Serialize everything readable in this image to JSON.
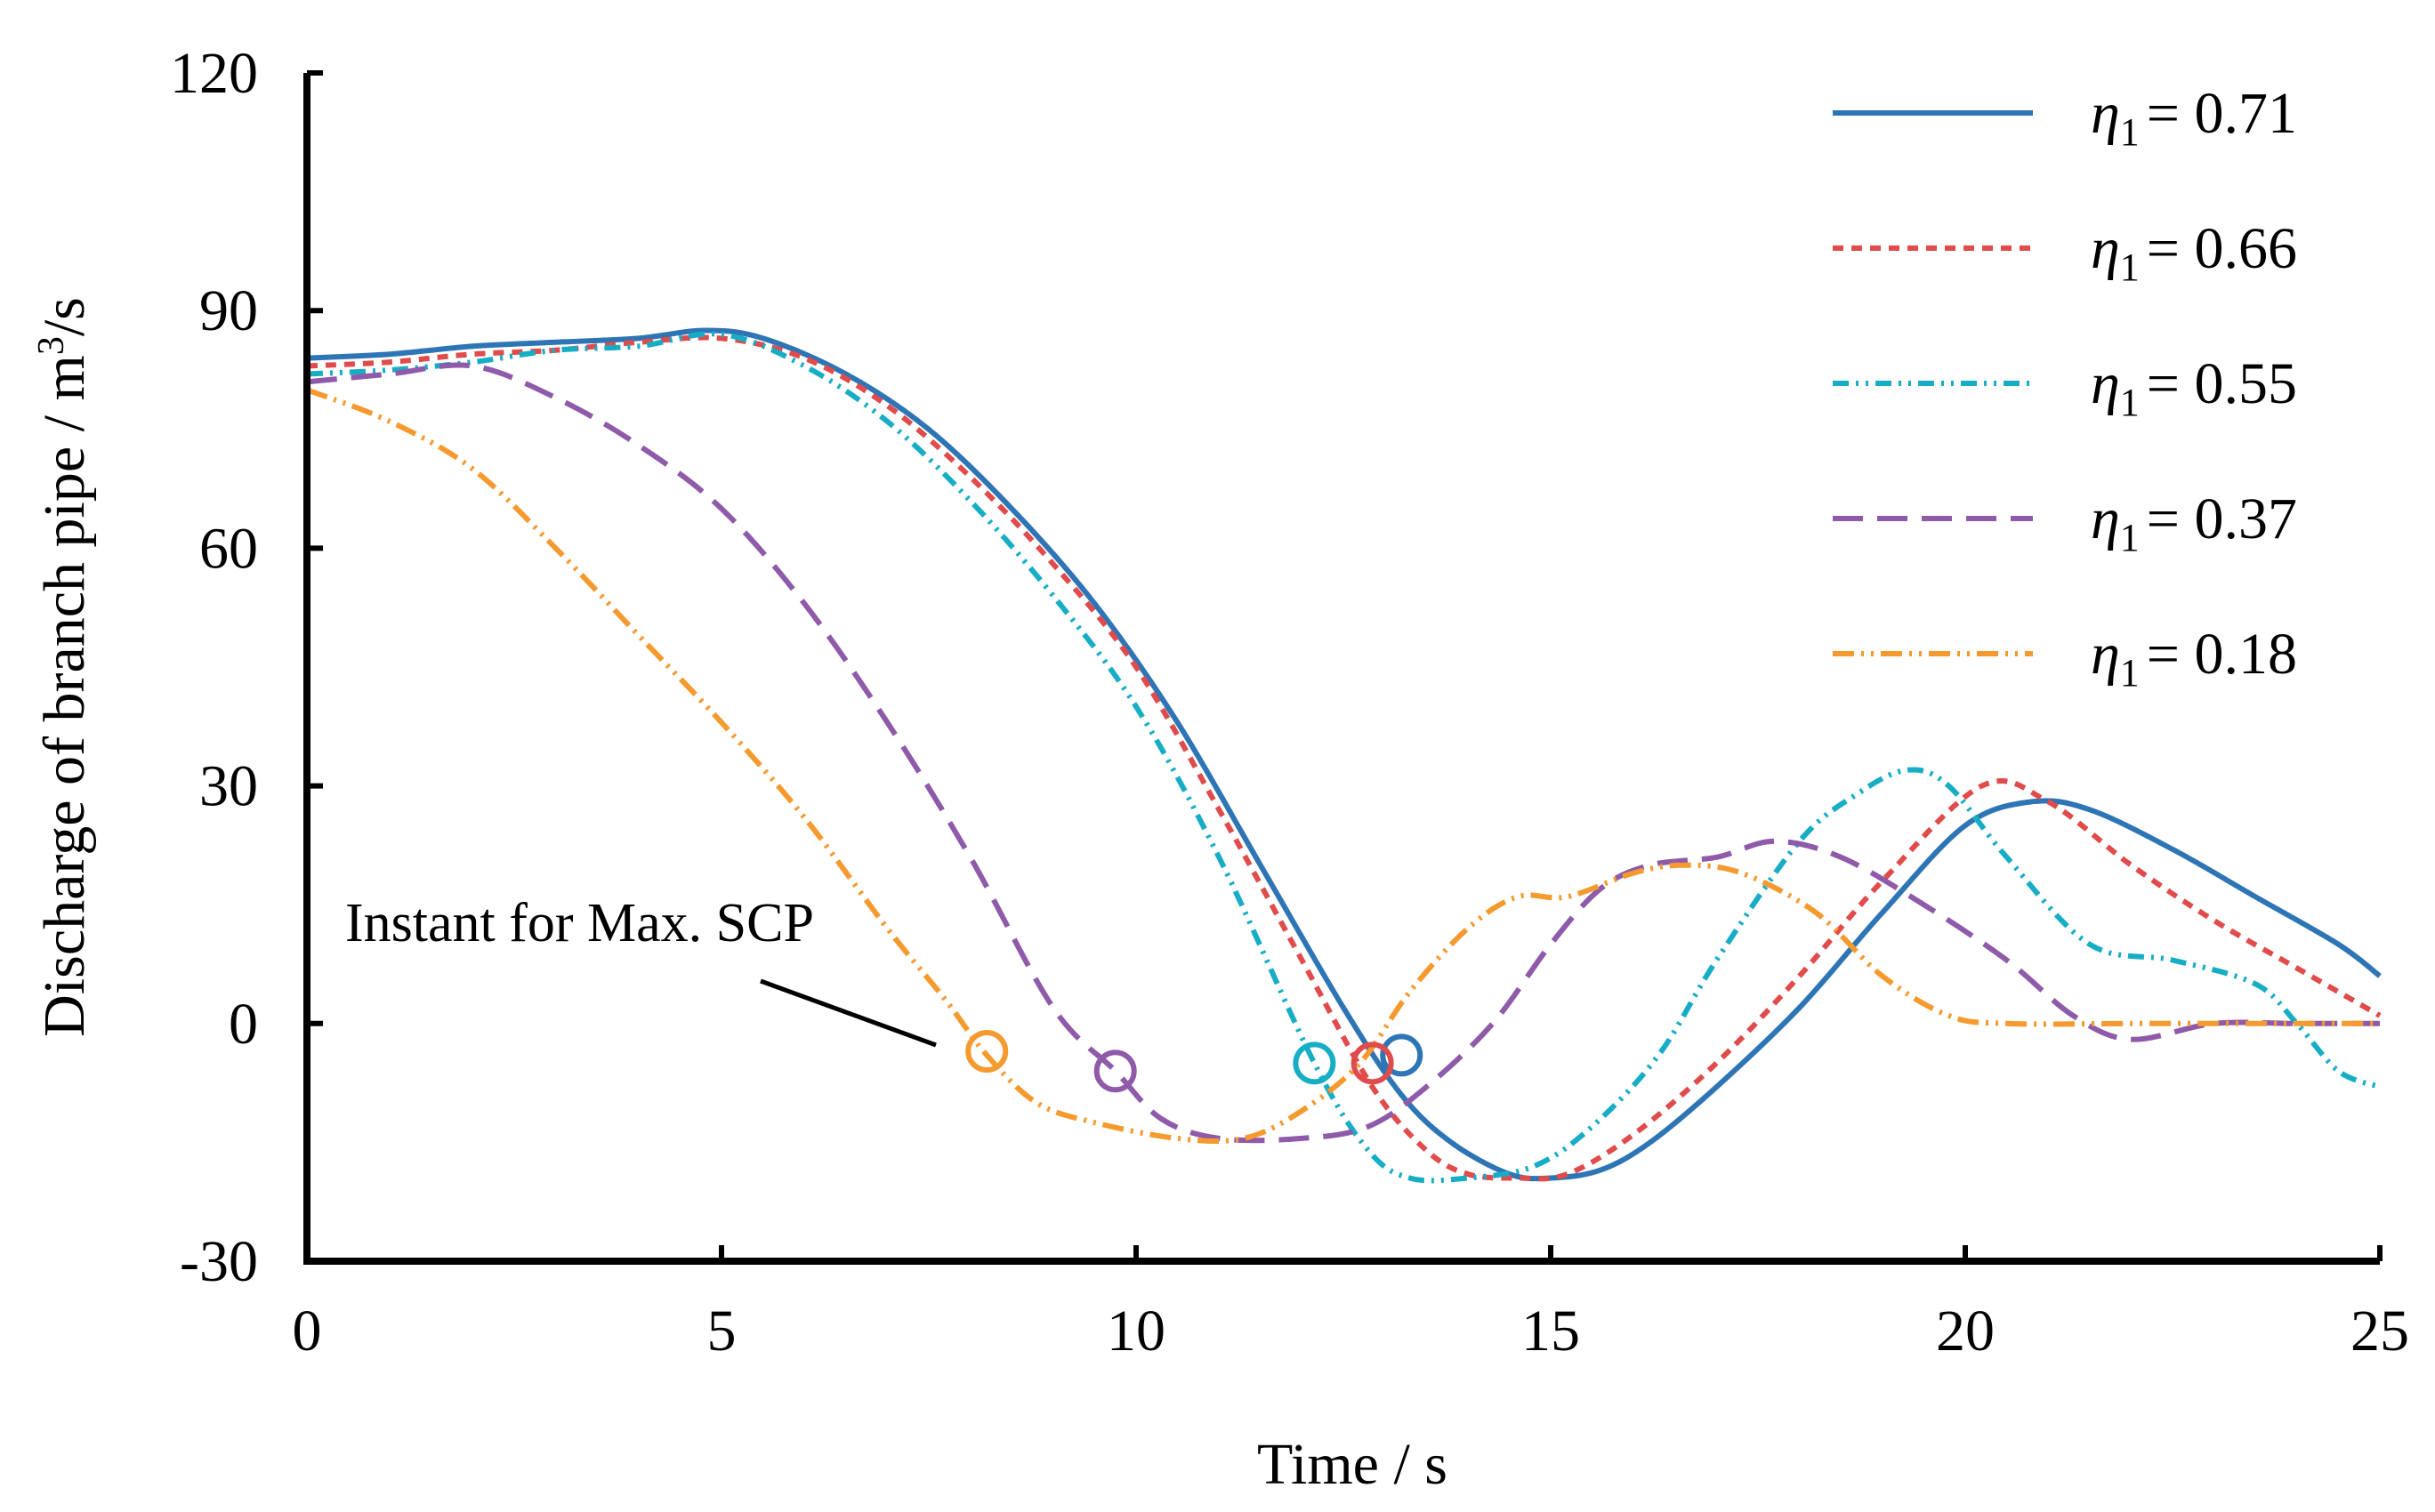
{
  "chart_data": {
    "type": "line",
    "title": "",
    "xlabel": "Time / s",
    "ylabel": "Discharge  of branch pipe / m",
    "ylabel_sup": "3",
    "ylabel_tail": "/s",
    "xlim": [
      0,
      25
    ],
    "ylim": [
      -30,
      120
    ],
    "xticks": [
      "0",
      "5",
      "10",
      "15",
      "20",
      "25"
    ],
    "yticks": [
      "-30",
      "0",
      "30",
      "60",
      "90",
      "120"
    ],
    "xtick_values": [
      0,
      5,
      10,
      15,
      20,
      25
    ],
    "ytick_values": [
      -30,
      0,
      30,
      60,
      90,
      120
    ],
    "grid": false,
    "legend_position": "top-right",
    "annotation": "Instant for Max. SCP",
    "legend_symbol": "η",
    "legend_sub": "1",
    "series": [
      {
        "name": "η1 = 0.71",
        "value_label": "= 0.71",
        "color": "#2e75b6",
        "dash": "solid",
        "marker_time": 13.2,
        "marker_value": -4,
        "x": [
          0,
          1,
          2,
          3,
          4,
          4.8,
          5.5,
          6.5,
          7.5,
          8.5,
          9.5,
          10.5,
          11.5,
          12.5,
          13.2,
          13.8,
          14.5,
          15,
          15.6,
          16.2,
          17,
          18,
          19,
          20,
          20.8,
          21.5,
          22.5,
          23.5,
          24.5,
          25
        ],
        "y": [
          84,
          84.5,
          85.5,
          86,
          86.5,
          87.5,
          86.5,
          82,
          75,
          65,
          53,
          38,
          20,
          2,
          -9,
          -15,
          -19,
          -19.5,
          -18.5,
          -15,
          -8,
          2,
          14,
          25,
          28,
          27,
          22,
          16,
          10,
          6
        ]
      },
      {
        "name": "η1 = 0.66",
        "value_label": "= 0.66",
        "color": "#e04b4b",
        "dash": "12 9",
        "marker_time": 12.85,
        "marker_value": -5,
        "x": [
          0,
          1,
          2,
          3,
          4,
          5,
          6,
          7,
          8,
          9,
          10,
          11,
          12,
          12.85,
          13.5,
          14,
          14.6,
          15.2,
          16,
          17,
          18,
          19,
          20.2,
          21,
          22,
          23,
          24,
          25
        ],
        "y": [
          83,
          83.5,
          84.5,
          85,
          86,
          86.5,
          84,
          78,
          69,
          58,
          45,
          27,
          8,
          -8,
          -16,
          -19,
          -19.5,
          -19,
          -14,
          -5,
          6,
          18,
          30,
          28,
          20,
          13,
          7,
          1
        ]
      },
      {
        "name": "η1 = 0.55",
        "value_label": "= 0.55",
        "color": "#17aec5",
        "dash": "18 8 3 8 3 8",
        "marker_time": 12.15,
        "marker_value": -5,
        "x": [
          0,
          1,
          2,
          3,
          4,
          5,
          6,
          7,
          8,
          9,
          10,
          11,
          12.15,
          12.8,
          13.3,
          14,
          14.8,
          15.5,
          16.3,
          17,
          18,
          18.7,
          19.3,
          19.8,
          20.5,
          21.5,
          22.5,
          23.5,
          24,
          24.5,
          25
        ],
        "y": [
          82,
          82.5,
          83.5,
          85,
          85.5,
          87,
          83,
          76,
          66,
          54,
          40,
          21,
          -5,
          -16,
          -19.5,
          -19.5,
          -18,
          -13,
          -4,
          8,
          23,
          29,
          32,
          30,
          21,
          10,
          8,
          5,
          0,
          -6,
          -8
        ]
      },
      {
        "name": "η1 = 0.37",
        "value_label": "= 0.37",
        "color": "#8e5aa9",
        "dash": "34 16",
        "marker_time": 9.75,
        "marker_value": -6,
        "x": [
          0,
          1,
          2,
          3,
          4,
          5,
          6,
          7,
          8,
          9,
          9.75,
          10.3,
          11,
          12,
          12.8,
          13.5,
          14.3,
          15,
          15.6,
          16.2,
          17,
          17.7,
          18.5,
          19.5,
          20.5,
          21.3,
          22,
          23,
          24,
          25
        ],
        "y": [
          81,
          82,
          83,
          79,
          73,
          65,
          53,
          38,
          21,
          2,
          -6,
          -12,
          -14.5,
          -14.5,
          -13,
          -8,
          0,
          10,
          17,
          20,
          21,
          23,
          21,
          15,
          8,
          1,
          -2,
          0,
          0,
          0
        ]
      },
      {
        "name": "η1 = 0.18",
        "value_label": "= 0.18",
        "color": "#f59a2f",
        "dash": "24 8 3 8 3 8",
        "marker_time": 8.2,
        "marker_value": -3.5,
        "x": [
          0,
          1,
          2,
          3,
          4,
          5,
          6,
          7,
          7.7,
          8.2,
          8.8,
          9.5,
          10.5,
          11.3,
          12,
          12.7,
          13.3,
          14,
          14.6,
          15.2,
          16,
          16.6,
          17.3,
          18.2,
          19,
          19.8,
          20.5,
          22,
          23.5,
          25
        ],
        "y": [
          80,
          76,
          70,
          60,
          49,
          38,
          26,
          12,
          3,
          -4,
          -10,
          -12.5,
          -14.5,
          -14.5,
          -11,
          -5,
          4,
          12,
          16,
          16,
          19,
          20,
          19,
          14,
          6,
          1,
          0,
          0,
          0,
          0
        ]
      }
    ]
  }
}
